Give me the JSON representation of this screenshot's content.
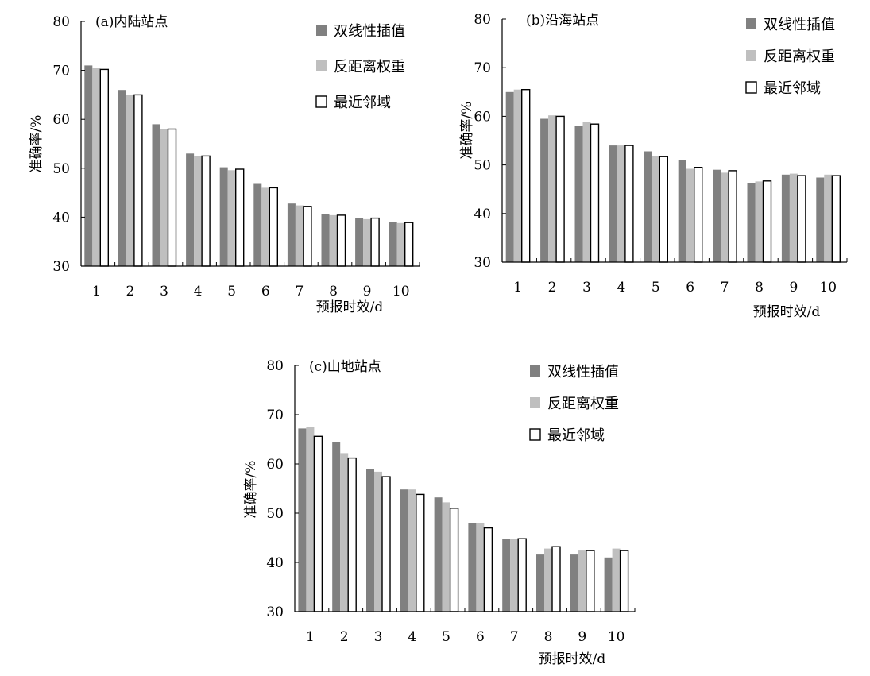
{
  "legend": {
    "series": [
      {
        "name": "双线性插值",
        "color": "#808080",
        "stroke": "none"
      },
      {
        "name": "反距离权重",
        "color": "#bfbfbf",
        "stroke": "none"
      },
      {
        "name": "最近邻域",
        "color": "#ffffff",
        "stroke": "#000000"
      }
    ]
  },
  "chart_data": [
    {
      "type": "bar",
      "title": "(a)内陆站点",
      "xlabel": "预报时效/d",
      "ylabel": "准确率/%",
      "ylim": [
        30,
        80
      ],
      "yticks": [
        30,
        40,
        50,
        60,
        70,
        80
      ],
      "categories": [
        "1",
        "2",
        "3",
        "4",
        "5",
        "6",
        "7",
        "8",
        "9",
        "10"
      ],
      "series": [
        {
          "name": "双线性插值",
          "values": [
            71.0,
            66.0,
            59.0,
            53.0,
            50.2,
            46.8,
            42.8,
            40.6,
            39.8,
            39.0
          ]
        },
        {
          "name": "反距离权重",
          "values": [
            70.5,
            65.0,
            58.0,
            52.5,
            49.6,
            46.0,
            42.4,
            40.4,
            39.6,
            38.8
          ]
        },
        {
          "name": "最近邻域",
          "values": [
            70.2,
            65.0,
            58.0,
            52.5,
            49.8,
            46.0,
            42.2,
            40.4,
            39.8,
            38.9
          ]
        }
      ],
      "legend_position": "top-right"
    },
    {
      "type": "bar",
      "title": "(b)沿海站点",
      "xlabel": "预报时效/d",
      "ylabel": "准确率/%",
      "ylim": [
        30,
        80
      ],
      "yticks": [
        30,
        40,
        50,
        60,
        70,
        80
      ],
      "categories": [
        "1",
        "2",
        "3",
        "4",
        "5",
        "6",
        "7",
        "8",
        "9",
        "10"
      ],
      "series": [
        {
          "name": "双线性插值",
          "values": [
            65.0,
            59.5,
            58.0,
            54.0,
            52.8,
            51.0,
            49.0,
            46.2,
            48.0,
            47.4
          ]
        },
        {
          "name": "反距离权重",
          "values": [
            65.5,
            60.2,
            58.8,
            54.0,
            51.8,
            49.2,
            48.4,
            46.6,
            48.2,
            48.0
          ]
        },
        {
          "name": "最近邻域",
          "values": [
            65.5,
            60.0,
            58.4,
            54.0,
            51.7,
            49.5,
            48.8,
            46.7,
            47.8,
            47.8
          ]
        }
      ],
      "legend_position": "top-right"
    },
    {
      "type": "bar",
      "title": "(c)山地站点",
      "xlabel": "预报时效/d",
      "ylabel": "准确率/%",
      "ylim": [
        30,
        80
      ],
      "yticks": [
        30,
        40,
        50,
        60,
        70,
        80
      ],
      "categories": [
        "1",
        "2",
        "3",
        "4",
        "5",
        "6",
        "7",
        "8",
        "9",
        "10"
      ],
      "series": [
        {
          "name": "双线性插值",
          "values": [
            67.2,
            64.4,
            59.0,
            54.8,
            53.2,
            48.0,
            44.8,
            41.6,
            41.6,
            41.0
          ]
        },
        {
          "name": "反距离权重",
          "values": [
            67.5,
            62.2,
            58.4,
            54.8,
            52.2,
            47.9,
            44.8,
            42.8,
            42.4,
            42.8
          ]
        },
        {
          "name": "最近邻域",
          "values": [
            65.6,
            61.2,
            57.4,
            53.8,
            51.0,
            47.0,
            44.8,
            43.2,
            42.4,
            42.4
          ]
        }
      ],
      "legend_position": "top-right"
    }
  ]
}
